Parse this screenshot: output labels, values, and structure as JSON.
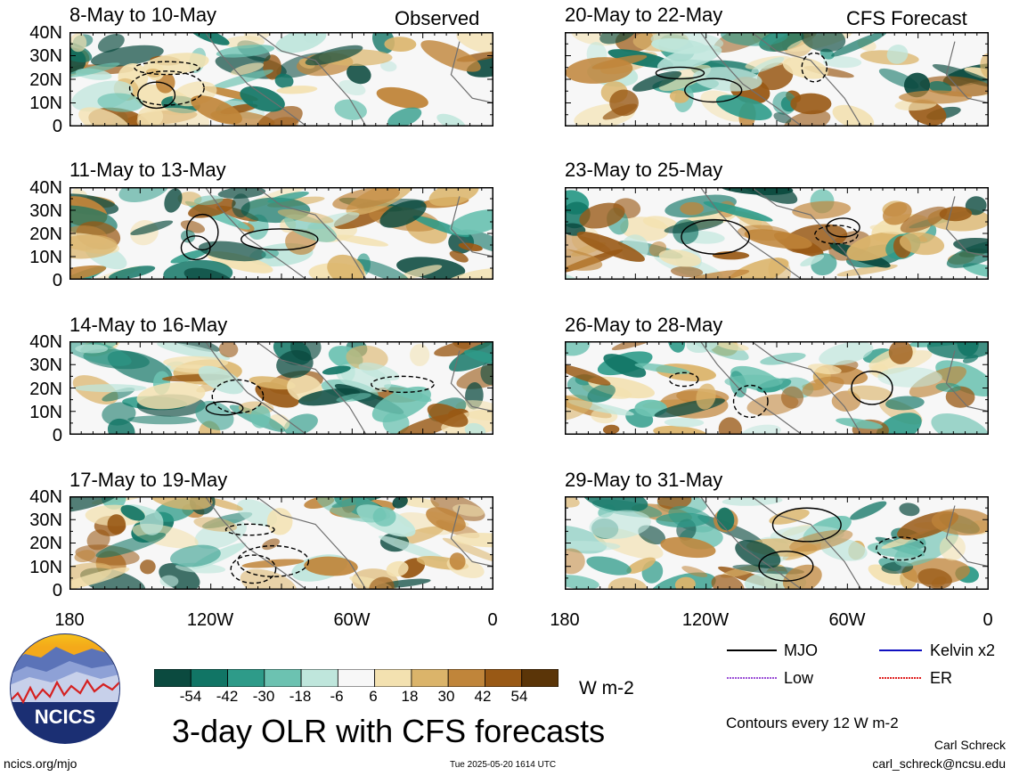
{
  "panels": [
    {
      "title": "8-May to 10-May",
      "tag": "Observed"
    },
    {
      "title": "20-May to 22-May",
      "tag": "CFS Forecast"
    },
    {
      "title": "11-May to 13-May",
      "tag": ""
    },
    {
      "title": "23-May to 25-May",
      "tag": ""
    },
    {
      "title": "14-May to 16-May",
      "tag": ""
    },
    {
      "title": "26-May to 28-May",
      "tag": ""
    },
    {
      "title": "17-May to 19-May",
      "tag": ""
    },
    {
      "title": "29-May to 31-May",
      "tag": ""
    }
  ],
  "lat_labels": [
    "40N",
    "30N",
    "20N",
    "10N",
    "0"
  ],
  "lon_labels": [
    "180",
    "120W",
    "60W",
    "0"
  ],
  "colorbar": {
    "values": [
      "-54",
      "-42",
      "-30",
      "-18",
      "-6",
      "6",
      "18",
      "30",
      "42",
      "54"
    ],
    "colors": [
      "#0b4a3f",
      "#117565",
      "#2e9b89",
      "#6cc2b1",
      "#bfe6dc",
      "#f7f7f7",
      "#f3e1b0",
      "#dbb46a",
      "#c0853a",
      "#995915",
      "#5b3508"
    ],
    "units": "W m-2"
  },
  "main_title": "3-day OLR with CFS forecasts",
  "legend": [
    {
      "label": "MJO",
      "color": "#000000"
    },
    {
      "label": "Kelvin x2",
      "color": "#1010c0"
    },
    {
      "label": "Low",
      "color": "#9b4fd6"
    },
    {
      "label": "ER",
      "color": "#e02020"
    }
  ],
  "contour_note": "Contours every 12 W m-2",
  "author": "Carl Schreck",
  "email": "carl_schreck@ncsu.edu",
  "url": "ncics.org/mjo",
  "timestamp": "Tue 2025-05-20 1614 UTC",
  "logo_text": "NCICS"
}
